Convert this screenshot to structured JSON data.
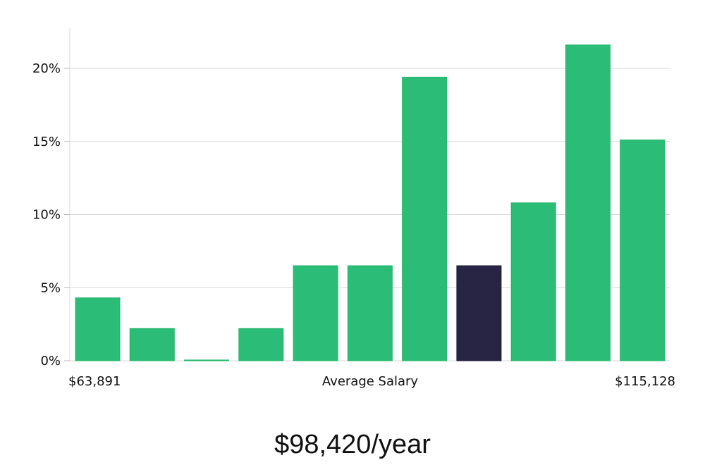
{
  "chart_data": {
    "type": "bar",
    "title": "$98,420/year",
    "xlabel": "Average Salary",
    "x_min_label": "$63,891",
    "x_max_label": "$115,128",
    "ylabel": "",
    "ylim": [
      0,
      22.8
    ],
    "yticks": [
      0,
      5,
      10,
      15,
      20
    ],
    "ytick_labels": [
      "0%",
      "5%",
      "10%",
      "15%",
      "20%"
    ],
    "grid": true,
    "values": [
      4.3,
      2.2,
      0.05,
      2.2,
      6.5,
      6.5,
      19.4,
      6.5,
      10.8,
      21.6,
      15.1
    ],
    "highlight_index": 7,
    "colors": {
      "bar": "#2bbd77",
      "bar_edge": "#22b56c",
      "highlight": "#272444",
      "grid": "#d9d9d9"
    }
  }
}
